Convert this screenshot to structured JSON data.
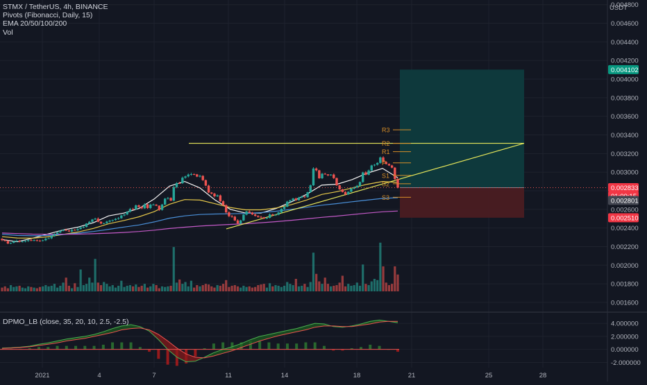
{
  "header": {
    "symbol_line": "STMX / TetherUS, 4h, BINANCE",
    "indicators": [
      "Pivots (Fibonacci, Daily, 15)",
      "EMA 20/50/100/200",
      "Vol"
    ],
    "currency": "USDT"
  },
  "oscillator": {
    "legend": "DPMO_LB (close, 35, 20, 10, 2.5, -2.5)"
  },
  "colors": {
    "background": "#131722",
    "grid": "#1e222d",
    "up": "#26a69a",
    "down": "#ef5350",
    "trendline": "#e6e65a",
    "pivot": "#d88f28",
    "target_zone": "#0e3b3e",
    "stop_zone": "#4a1c22",
    "price_tag_green": "#089981",
    "price_tag_red": "#f23645",
    "current_tag": "#434651"
  },
  "chart_data": {
    "type": "candlestick",
    "price_axis": {
      "ticks": [
        "0.001600",
        "0.001800",
        "0.002000",
        "0.002200",
        "0.002400",
        "0.002600",
        "0.002800",
        "0.003000",
        "0.003200",
        "0.003400",
        "0.003600",
        "0.003800",
        "0.004000",
        "0.004200",
        "0.004400",
        "0.004600",
        "0.004800"
      ],
      "ylim": [
        0.00151,
        0.00485
      ]
    },
    "oscillator_axis": {
      "ticks": [
        "-2.000000",
        "0.000000",
        "2.000000",
        "4.000000"
      ],
      "ylim": [
        -2.8,
        5.5
      ]
    },
    "time_axis": {
      "ticks": [
        "2021",
        "4",
        "7",
        "11",
        "14",
        "18",
        "21",
        "25",
        "28"
      ]
    },
    "price_tags": [
      {
        "label": "0.004102",
        "value": 0.004102,
        "kind": "target"
      },
      {
        "label": "0.002833",
        "value": 0.002833,
        "kind": "close"
      },
      {
        "label": "01:00:15",
        "value": 0.002833,
        "kind": "countdown"
      },
      {
        "label": "0.002801",
        "value": 0.002801,
        "kind": "current"
      },
      {
        "label": "0.002510",
        "value": 0.00251,
        "kind": "stop"
      }
    ],
    "pivots": [
      {
        "label": "R3",
        "value": 0.003455
      },
      {
        "label": "R2",
        "value": 0.00331
      },
      {
        "label": "R1",
        "value": 0.00322
      },
      {
        "label": "P",
        "value": 0.0031
      },
      {
        "label": "S1",
        "value": 0.002965
      },
      {
        "label": "S2",
        "value": 0.002875
      },
      {
        "label": "S3",
        "value": 0.00273
      }
    ],
    "position": {
      "entry": 0.002833,
      "target": 0.004102,
      "stop": 0.00251
    },
    "resistance": 0.00331,
    "candles": {
      "o": [
        0.002284,
        0.002269,
        0.00226,
        0.002233,
        0.00224,
        0.002257,
        0.002262,
        0.002253,
        0.002255,
        0.00226,
        0.002269,
        0.002268,
        0.002269,
        0.002264,
        0.002262,
        0.002268,
        0.002285,
        0.002289,
        0.002313,
        0.002334,
        0.002352,
        0.002369,
        0.002379,
        0.002372,
        0.002362,
        0.002379,
        0.002377,
        0.002388,
        0.002406,
        0.002411,
        0.002448,
        0.002466,
        0.002491,
        0.0025,
        0.002467,
        0.002448,
        0.002451,
        0.002468,
        0.002479,
        0.002486,
        0.002498,
        0.002505,
        0.002534,
        0.002545,
        0.002575,
        0.002603,
        0.002599,
        0.002643,
        0.002626,
        0.002611,
        0.002654,
        0.002614,
        0.002651,
        0.002651,
        0.00264,
        0.002594,
        0.002652,
        0.002715,
        0.002722,
        0.002694,
        0.002839,
        0.002882,
        0.002881,
        0.00294,
        0.002954,
        0.002974,
        0.002979,
        0.002976,
        0.002952,
        0.00296,
        0.002914,
        0.002855,
        0.002781,
        0.002769,
        0.00274,
        0.00275,
        0.002687,
        0.002645,
        0.002568,
        0.002527,
        0.002521,
        0.002481,
        0.002448,
        0.002481,
        0.002543,
        0.002577,
        0.002566,
        0.002545,
        0.00253,
        0.002519,
        0.002515,
        0.002502,
        0.002509,
        0.002545,
        0.002537,
        0.002542,
        0.002567,
        0.002605,
        0.002628,
        0.002683,
        0.002697,
        0.002716,
        0.002698,
        0.002727,
        0.002739,
        0.002731,
        0.002784,
        0.002858,
        0.003039,
        0.00302,
        0.002934,
        0.002983,
        0.002977,
        0.002966,
        0.002974,
        0.002936,
        0.002858,
        0.002815,
        0.002787,
        0.002761,
        0.002789,
        0.002822,
        0.002835,
        0.002853,
        0.002894,
        0.002997,
        0.002972,
        0.003018,
        0.003072,
        0.00308,
        0.003099,
        0.003158,
        0.003109,
        0.003088,
        0.003072,
        0.003048,
        0.002926
      ],
      "c": [
        0.002269,
        0.00226,
        0.002233,
        0.00224,
        0.002257,
        0.002262,
        0.002253,
        0.002255,
        0.00226,
        0.002269,
        0.002268,
        0.002269,
        0.002264,
        0.002262,
        0.002268,
        0.002285,
        0.002289,
        0.002313,
        0.002334,
        0.002352,
        0.002369,
        0.002379,
        0.002372,
        0.002362,
        0.002379,
        0.002377,
        0.002388,
        0.002406,
        0.002411,
        0.002448,
        0.002466,
        0.002491,
        0.0025,
        0.002467,
        0.002448,
        0.002451,
        0.002468,
        0.002479,
        0.002486,
        0.002498,
        0.002505,
        0.002534,
        0.002545,
        0.002575,
        0.002603,
        0.002599,
        0.002643,
        0.002626,
        0.002611,
        0.002654,
        0.002614,
        0.002651,
        0.002651,
        0.00264,
        0.002594,
        0.002652,
        0.002715,
        0.002722,
        0.002694,
        0.002839,
        0.002882,
        0.002881,
        0.00294,
        0.002954,
        0.002974,
        0.002979,
        0.002976,
        0.002952,
        0.00296,
        0.002914,
        0.002855,
        0.002781,
        0.002769,
        0.00274,
        0.00275,
        0.002687,
        0.002645,
        0.002568,
        0.002527,
        0.002521,
        0.002481,
        0.002448,
        0.002481,
        0.002543,
        0.002577,
        0.002566,
        0.002545,
        0.00253,
        0.002519,
        0.002515,
        0.002502,
        0.002509,
        0.002545,
        0.002537,
        0.002542,
        0.002567,
        0.002605,
        0.002628,
        0.002683,
        0.002697,
        0.002716,
        0.002698,
        0.002727,
        0.002739,
        0.002731,
        0.002784,
        0.002858,
        0.003039,
        0.00302,
        0.002934,
        0.002983,
        0.002977,
        0.002966,
        0.002974,
        0.002936,
        0.002858,
        0.002815,
        0.002787,
        0.002761,
        0.002789,
        0.002822,
        0.002835,
        0.002853,
        0.002894,
        0.002997,
        0.002972,
        0.003018,
        0.003072,
        0.00308,
        0.003099,
        0.003158,
        0.003109,
        0.003088,
        0.003072,
        0.003048,
        0.002926,
        0.002833
      ],
      "h": [
        0.00229,
        0.002274,
        0.002268,
        0.002244,
        0.002261,
        0.002275,
        0.002272,
        0.002261,
        0.002268,
        0.002273,
        0.002283,
        0.002277,
        0.002276,
        0.002273,
        0.002274,
        0.002295,
        0.002298,
        0.002319,
        0.002342,
        0.00236,
        0.002378,
        0.002385,
        0.002392,
        0.002383,
        0.00239,
        0.002388,
        0.002404,
        0.002416,
        0.00242,
        0.002452,
        0.002475,
        0.002497,
        0.00251,
        0.002514,
        0.002472,
        0.002457,
        0.002478,
        0.002487,
        0.00249,
        0.002506,
        0.002517,
        0.002542,
        0.00255,
        0.002581,
        0.002616,
        0.002617,
        0.002652,
        0.002652,
        0.002635,
        0.002666,
        0.002659,
        0.002661,
        0.002662,
        0.002656,
        0.002642,
        0.002659,
        0.002722,
        0.002733,
        0.00273,
        0.002852,
        0.002892,
        0.002896,
        0.002952,
        0.002962,
        0.002986,
        0.002993,
        0.002986,
        0.002981,
        0.002972,
        0.002967,
        0.00292,
        0.002865,
        0.002786,
        0.002778,
        0.00276,
        0.002759,
        0.002697,
        0.002654,
        0.00258,
        0.002539,
        0.002532,
        0.002494,
        0.002488,
        0.002548,
        0.002584,
        0.002589,
        0.002573,
        0.002555,
        0.002537,
        0.00253,
        0.00252,
        0.002517,
        0.002557,
        0.002553,
        0.002549,
        0.002573,
        0.002612,
        0.002637,
        0.002692,
        0.002704,
        0.002723,
        0.002726,
        0.002735,
        0.002746,
        0.002741,
        0.002789,
        0.002868,
        0.003053,
        0.00305,
        0.003025,
        0.002991,
        0.002992,
        0.002977,
        0.002978,
        0.002986,
        0.002942,
        0.002866,
        0.002821,
        0.002796,
        0.002794,
        0.00283,
        0.002844,
        0.002862,
        0.0029,
        0.003004,
        0.00301,
        0.003027,
        0.003079,
        0.003087,
        0.003106,
        0.003168,
        0.003171,
        0.003118,
        0.003094,
        0.003079,
        0.003055,
        0.002938
      ],
      "l": [
        0.002258,
        0.002255,
        0.002226,
        0.002226,
        0.002235,
        0.00225,
        0.002245,
        0.002245,
        0.002246,
        0.00225,
        0.002258,
        0.002257,
        0.002254,
        0.002252,
        0.002255,
        0.002259,
        0.002282,
        0.00228,
        0.002306,
        0.002329,
        0.002343,
        0.002364,
        0.002368,
        0.002357,
        0.002354,
        0.00237,
        0.002367,
        0.002384,
        0.002396,
        0.002406,
        0.002438,
        0.002462,
        0.002487,
        0.002462,
        0.00244,
        0.002442,
        0.002444,
        0.002458,
        0.002467,
        0.002478,
        0.002488,
        0.002498,
        0.002525,
        0.002537,
        0.002566,
        0.002593,
        0.002595,
        0.002618,
        0.002603,
        0.002605,
        0.002605,
        0.002603,
        0.002643,
        0.002635,
        0.002584,
        0.002586,
        0.002645,
        0.002705,
        0.002688,
        0.002686,
        0.002828,
        0.002873,
        0.002874,
        0.002929,
        0.002943,
        0.002962,
        0.002967,
        0.002946,
        0.002942,
        0.002905,
        0.002848,
        0.002774,
        0.002761,
        0.002728,
        0.002733,
        0.002679,
        0.002637,
        0.002555,
        0.002516,
        0.00251,
        0.002474,
        0.002443,
        0.002437,
        0.002475,
        0.002536,
        0.002561,
        0.002539,
        0.002523,
        0.00251,
        0.002506,
        0.002495,
        0.002495,
        0.002502,
        0.002531,
        0.00253,
        0.002537,
        0.002559,
        0.002596,
        0.002623,
        0.002674,
        0.00269,
        0.002692,
        0.002695,
        0.002719,
        0.002722,
        0.002724,
        0.002778,
        0.002851,
        0.003008,
        0.002928,
        0.002926,
        0.002973,
        0.002956,
        0.002961,
        0.002926,
        0.002851,
        0.00281,
        0.002781,
        0.00275,
        0.002755,
        0.002785,
        0.002814,
        0.002827,
        0.002842,
        0.002885,
        0.002965,
        0.002966,
        0.00301,
        0.003061,
        0.003071,
        0.003091,
        0.003103,
        0.003082,
        0.003066,
        0.003041,
        0.002918,
        0.002826
      ]
    },
    "ema_series": [
      {
        "color": "#f5f5f5",
        "values": [
          0.002276,
          0.002252,
          0.00229,
          0.002335,
          0.002378,
          0.00241,
          0.002457,
          0.00253,
          0.00256,
          0.00261,
          0.002712,
          0.00285,
          0.0029,
          0.00283,
          0.0027,
          0.0026,
          0.00256,
          0.00256,
          0.00261,
          0.00268,
          0.00276,
          0.00286,
          0.00287,
          0.00292,
          0.00299,
          0.00304,
          0.00294
        ]
      },
      {
        "color": "#e6c84a",
        "values": [
          0.002306,
          0.002292,
          0.00229,
          0.002305,
          0.00233,
          0.002357,
          0.002395,
          0.002445,
          0.00248,
          0.00252,
          0.002575,
          0.002655,
          0.002705,
          0.0027,
          0.00266,
          0.00262,
          0.002595,
          0.002595,
          0.002615,
          0.00265,
          0.0027,
          0.00276,
          0.00279,
          0.00283,
          0.00287,
          0.0029,
          0.00289
        ]
      },
      {
        "color": "#4a90d9",
        "values": [
          0.002332,
          0.00232,
          0.002316,
          0.00232,
          0.00233,
          0.002344,
          0.002362,
          0.002385,
          0.00241,
          0.002432,
          0.002465,
          0.002505,
          0.00253,
          0.002545,
          0.00255,
          0.002552,
          0.002556,
          0.002565,
          0.00258,
          0.0026,
          0.002622,
          0.002645,
          0.002662,
          0.002682,
          0.0027,
          0.002718,
          0.002725
        ]
      },
      {
        "color": "#c45ac8",
        "values": [
          0.002346,
          0.00234,
          0.002334,
          0.002332,
          0.002332,
          0.002334,
          0.002338,
          0.002344,
          0.002352,
          0.002362,
          0.002376,
          0.002394,
          0.002408,
          0.00242,
          0.00243,
          0.002438,
          0.002446,
          0.002456,
          0.002468,
          0.002482,
          0.002498,
          0.002514,
          0.002528,
          0.002544,
          0.00256,
          0.002574,
          0.002582
        ]
      }
    ],
    "volume": [
      0.06,
      0.08,
      0.05,
      0.1,
      0.07,
      0.08,
      0.09,
      0.06,
      0.05,
      0.08,
      0.07,
      0.06,
      0.05,
      0.07,
      0.08,
      0.1,
      0.08,
      0.09,
      0.12,
      0.06,
      0.09,
      0.14,
      0.22,
      0.09,
      0.05,
      0.13,
      0.07,
      0.35,
      0.1,
      0.12,
      0.22,
      0.14,
      0.52,
      0.14,
      0.1,
      0.15,
      0.12,
      0.08,
      0.1,
      0.06,
      0.09,
      0.17,
      0.07,
      0.09,
      0.1,
      0.08,
      0.11,
      0.07,
      0.09,
      0.12,
      0.06,
      0.08,
      0.12,
      0.1,
      0.05,
      0.08,
      0.07,
      0.08,
      0.09,
      0.71,
      0.14,
      0.19,
      0.12,
      0.15,
      0.08,
      0.17,
      0.06,
      0.1,
      0.08,
      0.1,
      0.12,
      0.11,
      0.08,
      0.06,
      0.1,
      0.09,
      0.12,
      0.18,
      0.07,
      0.09,
      0.1,
      0.08,
      0.06,
      0.09,
      0.07,
      0.08,
      0.06,
      0.07,
      0.1,
      0.11,
      0.12,
      0.06,
      0.13,
      0.08,
      0.1,
      0.09,
      0.07,
      0.09,
      0.15,
      0.12,
      0.1,
      0.2,
      0.08,
      0.09,
      0.12,
      0.07,
      0.15,
      0.62,
      0.28,
      0.16,
      0.12,
      0.22,
      0.12,
      0.08,
      0.09,
      0.1,
      0.14,
      0.25,
      0.08,
      0.12,
      0.09,
      0.1,
      0.14,
      0.09,
      0.43,
      0.12,
      0.1,
      0.16,
      0.2,
      0.18,
      0.78,
      0.4,
      0.14,
      0.1,
      0.12,
      0.4,
      0.27
    ],
    "oscillator": {
      "line": [
        0.2,
        0.25,
        0.35,
        0.5,
        0.8,
        1.0,
        1.3,
        1.6,
        1.8,
        2.0,
        2.3,
        2.7,
        3.2,
        3.6,
        3.8,
        3.5,
        2.8,
        1.5,
        0.0,
        -1.2,
        -1.9,
        -1.8,
        -1.2,
        -0.5,
        0.0,
        0.4,
        0.9,
        1.5,
        2.0,
        2.3,
        2.6,
        2.9,
        3.2,
        3.6,
        4.0,
        3.9,
        3.5,
        3.4,
        3.6,
        3.9,
        4.3,
        4.5,
        4.3,
        4.1
      ],
      "signal": [
        0.15,
        0.2,
        0.3,
        0.4,
        0.6,
        0.8,
        1.0,
        1.3,
        1.5,
        1.7,
        2.0,
        2.3,
        2.6,
        3.0,
        3.2,
        3.3,
        3.0,
        2.3,
        1.3,
        0.2,
        -0.7,
        -1.2,
        -1.3,
        -1.0,
        -0.6,
        -0.2,
        0.3,
        0.8,
        1.3,
        1.7,
        2.1,
        2.4,
        2.7,
        3.0,
        3.4,
        3.6,
        3.6,
        3.5,
        3.5,
        3.7,
        3.9,
        4.2,
        4.3,
        4.3
      ]
    }
  }
}
